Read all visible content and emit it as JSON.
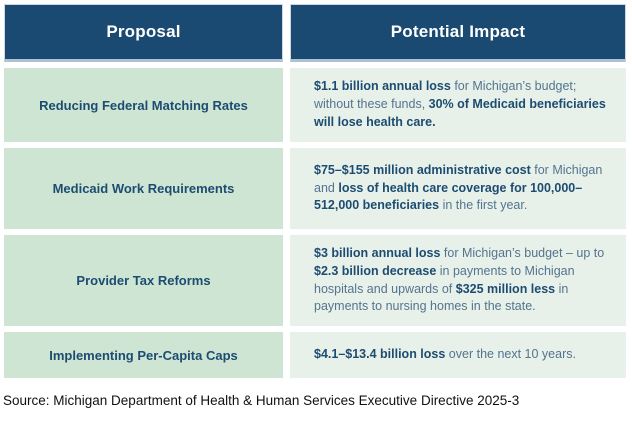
{
  "colors": {
    "header_bg": "#1a4a72",
    "header_text": "#ffffff",
    "proposal_cell_bg": "#cee5d3",
    "impact_cell_bg": "#e7f1ea",
    "bold_text": "#1d4c71",
    "regular_text": "#54748e",
    "source_text": "#111111"
  },
  "table": {
    "headers": [
      "Proposal",
      "Potential Impact"
    ],
    "rows": [
      {
        "proposal": "Reducing Federal Matching Rates",
        "impact_segments": [
          {
            "text": "$1.1 billion annual loss",
            "bold": true
          },
          {
            "text": " for Michigan’s budget; without these funds, ",
            "bold": false
          },
          {
            "text": "30% of Medicaid beneficiaries will lose health care.",
            "bold": true
          }
        ]
      },
      {
        "proposal": "Medicaid Work Requirements",
        "impact_segments": [
          {
            "text": "$75–$155 million administrative cost",
            "bold": true
          },
          {
            "text": " for Michigan and ",
            "bold": false
          },
          {
            "text": "loss of health care coverage for 100,000–512,000 beneficiaries",
            "bold": true
          },
          {
            "text": " in the first year.",
            "bold": false
          }
        ]
      },
      {
        "proposal": "Provider Tax Reforms",
        "impact_segments": [
          {
            "text": "$3 billion annual loss",
            "bold": true
          },
          {
            "text": " for Michigan’s budget – up to ",
            "bold": false
          },
          {
            "text": "$2.3 billion decrease",
            "bold": true
          },
          {
            "text": " in payments to Michigan hospitals and upwards of ",
            "bold": false
          },
          {
            "text": "$325 million less",
            "bold": true
          },
          {
            "text": " in payments to nursing homes in the state.",
            "bold": false
          }
        ]
      },
      {
        "proposal": "Implementing Per-Capita Caps",
        "impact_segments": [
          {
            "text": "$4.1–$13.4 billion loss",
            "bold": true
          },
          {
            "text": " over the next 10 years.",
            "bold": false
          }
        ]
      }
    ]
  },
  "source": "Source: Michigan Department of Health & Human Services Executive Directive 2025-3"
}
